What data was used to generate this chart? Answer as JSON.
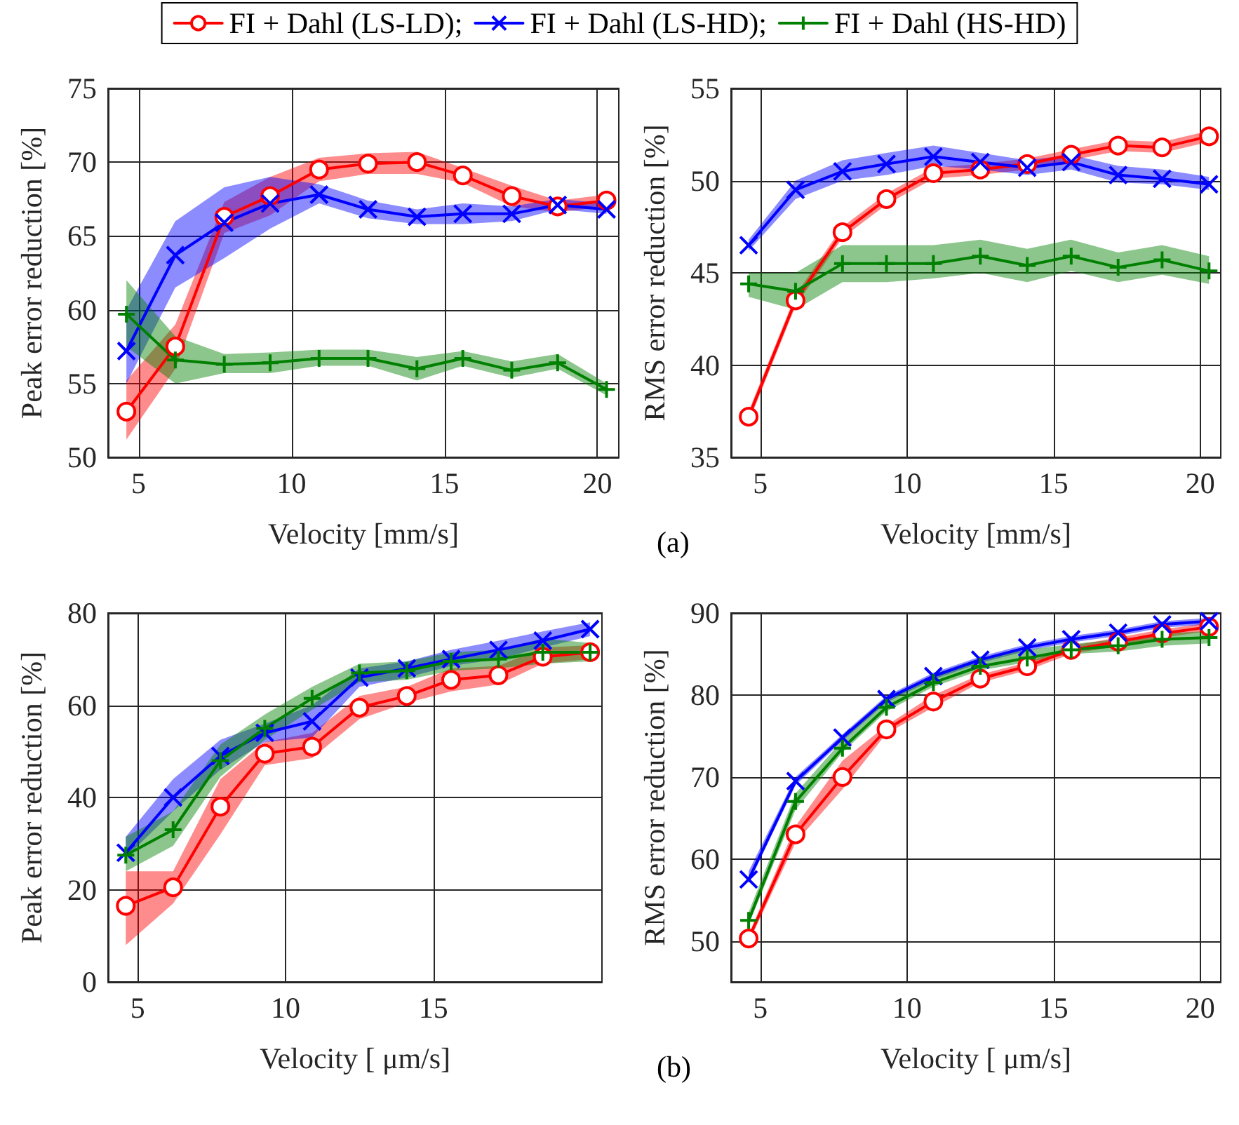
{
  "chart_data": [
    {
      "type": "line",
      "xlabel": "Velocity [mm/s]",
      "ylabel": "Peak error reduction [%]",
      "x": [
        4.6,
        6.2,
        7.8,
        9.3,
        10.9,
        12.5,
        14.1,
        15.6,
        17.2,
        18.7,
        20.3
      ],
      "xlim": [
        4,
        20.7
      ],
      "xticks": [
        5,
        10,
        15,
        20
      ],
      "ylim": [
        50,
        75
      ],
      "yticks": [
        50,
        55,
        60,
        65,
        70,
        75
      ],
      "grid": true,
      "legend": "top",
      "series": [
        {
          "name": "FI + Dahl (LS-LD);",
          "color": "#ff0000",
          "marker": "circle",
          "values": [
            53.1,
            57.5,
            66.3,
            67.7,
            69.5,
            69.9,
            70.0,
            69.1,
            67.7,
            67.0,
            67.4
          ],
          "lower": [
            51.2,
            56,
            65.2,
            66.4,
            68.7,
            69.2,
            69.2,
            68.6,
            67,
            66.6,
            67.0
          ],
          "upper": [
            55.2,
            59,
            67.3,
            69,
            70.3,
            70.6,
            70.7,
            69.6,
            68.4,
            67.4,
            67.8
          ]
        },
        {
          "name": "FI + Dahl (LS-HD);",
          "color": "#0000ff",
          "marker": "cross",
          "values": [
            57.2,
            63.7,
            65.9,
            67.2,
            67.8,
            66.8,
            66.3,
            66.5,
            66.5,
            67.1,
            66.8
          ],
          "lower": [
            55,
            61.5,
            63.5,
            65.5,
            67.2,
            66.2,
            65.8,
            65.8,
            66,
            66.8,
            66.5
          ],
          "upper": [
            60,
            66,
            68.3,
            69,
            68.5,
            67.4,
            66.8,
            67.2,
            67,
            67.5,
            67.2
          ]
        },
        {
          "name": "FI + Dahl (HS-HD)",
          "color": "#008000",
          "marker": "plus",
          "values": [
            59.7,
            56.6,
            56.3,
            56.4,
            56.7,
            56.7,
            56.0,
            56.7,
            55.9,
            56.4,
            54.6
          ],
          "lower": [
            57.5,
            55,
            55.7,
            55.7,
            56.2,
            56.2,
            55.2,
            56.2,
            55.4,
            56,
            54.2
          ],
          "upper": [
            62,
            58.2,
            57,
            57.1,
            57.3,
            57.3,
            56.8,
            57.2,
            56.5,
            57,
            55
          ]
        }
      ]
    },
    {
      "type": "line",
      "xlabel": "Velocity [mm/s]",
      "ylabel": "RMS error reduction [%]",
      "annotations": [
        "(a)"
      ],
      "x": [
        4.6,
        6.2,
        7.8,
        9.3,
        10.9,
        12.5,
        14.1,
        15.6,
        17.2,
        18.7,
        20.3
      ],
      "xlim": [
        4,
        20.7
      ],
      "xticks": [
        5,
        10,
        15,
        20
      ],
      "ylim": [
        35,
        55
      ],
      "yticks": [
        35,
        40,
        45,
        50,
        55
      ],
      "grid": true,
      "series": [
        {
          "color": "#ff0000",
          "marker": "circle",
          "values": [
            37.2,
            43.5,
            47.2,
            49.0,
            50.4,
            50.6,
            50.9,
            51.4,
            51.9,
            51.8,
            52.4
          ],
          "lower": [
            36.9,
            43.2,
            46.9,
            48.7,
            50.1,
            50.3,
            50.6,
            51.1,
            51.6,
            51.5,
            52.1
          ],
          "upper": [
            37.5,
            43.8,
            47.5,
            49.3,
            50.7,
            50.9,
            51.2,
            51.7,
            52.2,
            52.1,
            52.7
          ]
        },
        {
          "color": "#0000ff",
          "marker": "cross",
          "values": [
            46.5,
            49.5,
            50.5,
            50.9,
            51.3,
            51.0,
            50.7,
            51.0,
            50.3,
            50.1,
            49.8
          ],
          "lower": [
            46.2,
            49.0,
            50.0,
            50.3,
            50.8,
            50.6,
            50.3,
            50.6,
            49.9,
            49.8,
            49.5
          ],
          "upper": [
            46.8,
            50.0,
            51.1,
            51.5,
            51.9,
            51.5,
            51.1,
            51.4,
            50.8,
            50.6,
            50.2
          ]
        },
        {
          "color": "#008000",
          "marker": "plus",
          "values": [
            44.4,
            44.0,
            45.5,
            45.5,
            45.5,
            45.9,
            45.4,
            45.9,
            45.3,
            45.7,
            45.1
          ],
          "lower": [
            43.7,
            43.0,
            44.5,
            44.5,
            44.7,
            45.0,
            44.5,
            45.1,
            44.5,
            44.9,
            44.4
          ],
          "upper": [
            45.0,
            45.0,
            46.5,
            46.5,
            46.5,
            46.8,
            46.3,
            46.8,
            46.1,
            46.5,
            45.9
          ]
        }
      ]
    },
    {
      "type": "line",
      "xlabel": "Velocity [ μm/s]",
      "ylabel": "Peak error reduction [%]",
      "x": [
        4.6,
        6.2,
        7.8,
        9.3,
        10.9,
        12.5,
        14.1,
        15.6,
        17.2,
        18.7,
        20.3
      ],
      "xlim": [
        4,
        20.7
      ],
      "xticks": [
        5,
        10,
        15
      ],
      "ylim": [
        0,
        80
      ],
      "yticks": [
        0,
        20,
        40,
        60,
        80
      ],
      "grid": true,
      "series": [
        {
          "color": "#ff0000",
          "marker": "circle",
          "values": [
            16.5,
            20.5,
            38,
            49.5,
            51,
            59.5,
            62,
            65.5,
            66.5,
            70.5,
            71.5
          ],
          "lower": [
            8,
            17,
            32,
            47,
            48.5,
            57,
            60.5,
            63,
            64.5,
            69,
            70
          ],
          "upper": [
            24,
            24,
            44,
            52,
            54,
            62,
            64,
            68,
            68.5,
            72.5,
            73
          ]
        },
        {
          "color": "#0000ff",
          "marker": "cross",
          "values": [
            28,
            40,
            49,
            54,
            56.5,
            66,
            68,
            70,
            72,
            74,
            76.5
          ],
          "lower": [
            27,
            37,
            46,
            52,
            53,
            64,
            66,
            68.5,
            70,
            72.5,
            75
          ],
          "upper": [
            31.5,
            44,
            52.5,
            56,
            60,
            68,
            69.5,
            72,
            74,
            76,
            78
          ]
        },
        {
          "color": "#008000",
          "marker": "plus",
          "values": [
            27.5,
            33,
            48,
            55,
            61.5,
            67,
            67.5,
            69.5,
            70,
            71.5,
            71.5
          ],
          "lower": [
            24,
            29.5,
            44.5,
            52.5,
            59,
            65,
            65.5,
            67.5,
            68,
            69,
            69.5
          ],
          "upper": [
            31.5,
            37,
            51.5,
            58,
            64,
            69,
            69.5,
            71.5,
            72,
            74.5,
            73.5
          ]
        }
      ]
    },
    {
      "type": "line",
      "xlabel": "Velocity [ μm/s]",
      "ylabel": "RMS error reduction [%]",
      "annotations": [
        "(b)"
      ],
      "x": [
        4.6,
        6.2,
        7.8,
        9.3,
        10.9,
        12.5,
        14.1,
        15.6,
        17.2,
        18.7,
        20.3
      ],
      "xlim": [
        4,
        20.7
      ],
      "xticks": [
        5,
        10,
        15,
        20
      ],
      "ylim": [
        45,
        90
      ],
      "yticks": [
        50,
        60,
        70,
        80,
        90
      ],
      "grid": true,
      "series": [
        {
          "color": "#ff0000",
          "marker": "circle",
          "values": [
            50.3,
            63.0,
            70.0,
            75.8,
            79.2,
            82.0,
            83.5,
            85.5,
            86.5,
            87.5,
            88.3
          ],
          "lower": [
            49.8,
            62.0,
            68.5,
            75.3,
            78.5,
            81.5,
            83.0,
            85.0,
            86.0,
            87.0,
            87.8
          ],
          "upper": [
            50.8,
            64.0,
            72.0,
            76.3,
            80.0,
            82.5,
            84.0,
            86.0,
            87.0,
            88.0,
            88.8
          ]
        },
        {
          "color": "#0000ff",
          "marker": "cross",
          "values": [
            57.5,
            69.5,
            74.8,
            79.5,
            82.3,
            84.3,
            85.8,
            86.8,
            87.6,
            88.6,
            89.0
          ],
          "lower": [
            57.0,
            69.0,
            74.4,
            79.1,
            81.9,
            83.9,
            85.4,
            86.4,
            87.2,
            88.2,
            88.6
          ],
          "upper": [
            58.5,
            70.0,
            75.2,
            79.9,
            82.7,
            84.7,
            86.2,
            87.2,
            88.0,
            89.0,
            89.4
          ]
        },
        {
          "color": "#008000",
          "marker": "plus",
          "values": [
            52.5,
            67.0,
            73.5,
            78.5,
            81.5,
            83.5,
            84.5,
            85.5,
            86.0,
            86.8,
            87.0
          ],
          "lower": [
            52.0,
            66.0,
            73.0,
            78.0,
            81.0,
            83.0,
            84.0,
            85.0,
            85.3,
            86.0,
            86.3
          ],
          "upper": [
            53.5,
            68.0,
            74.5,
            79.5,
            82.5,
            84.5,
            85.5,
            86.2,
            86.8,
            87.5,
            87.8
          ]
        }
      ]
    }
  ]
}
